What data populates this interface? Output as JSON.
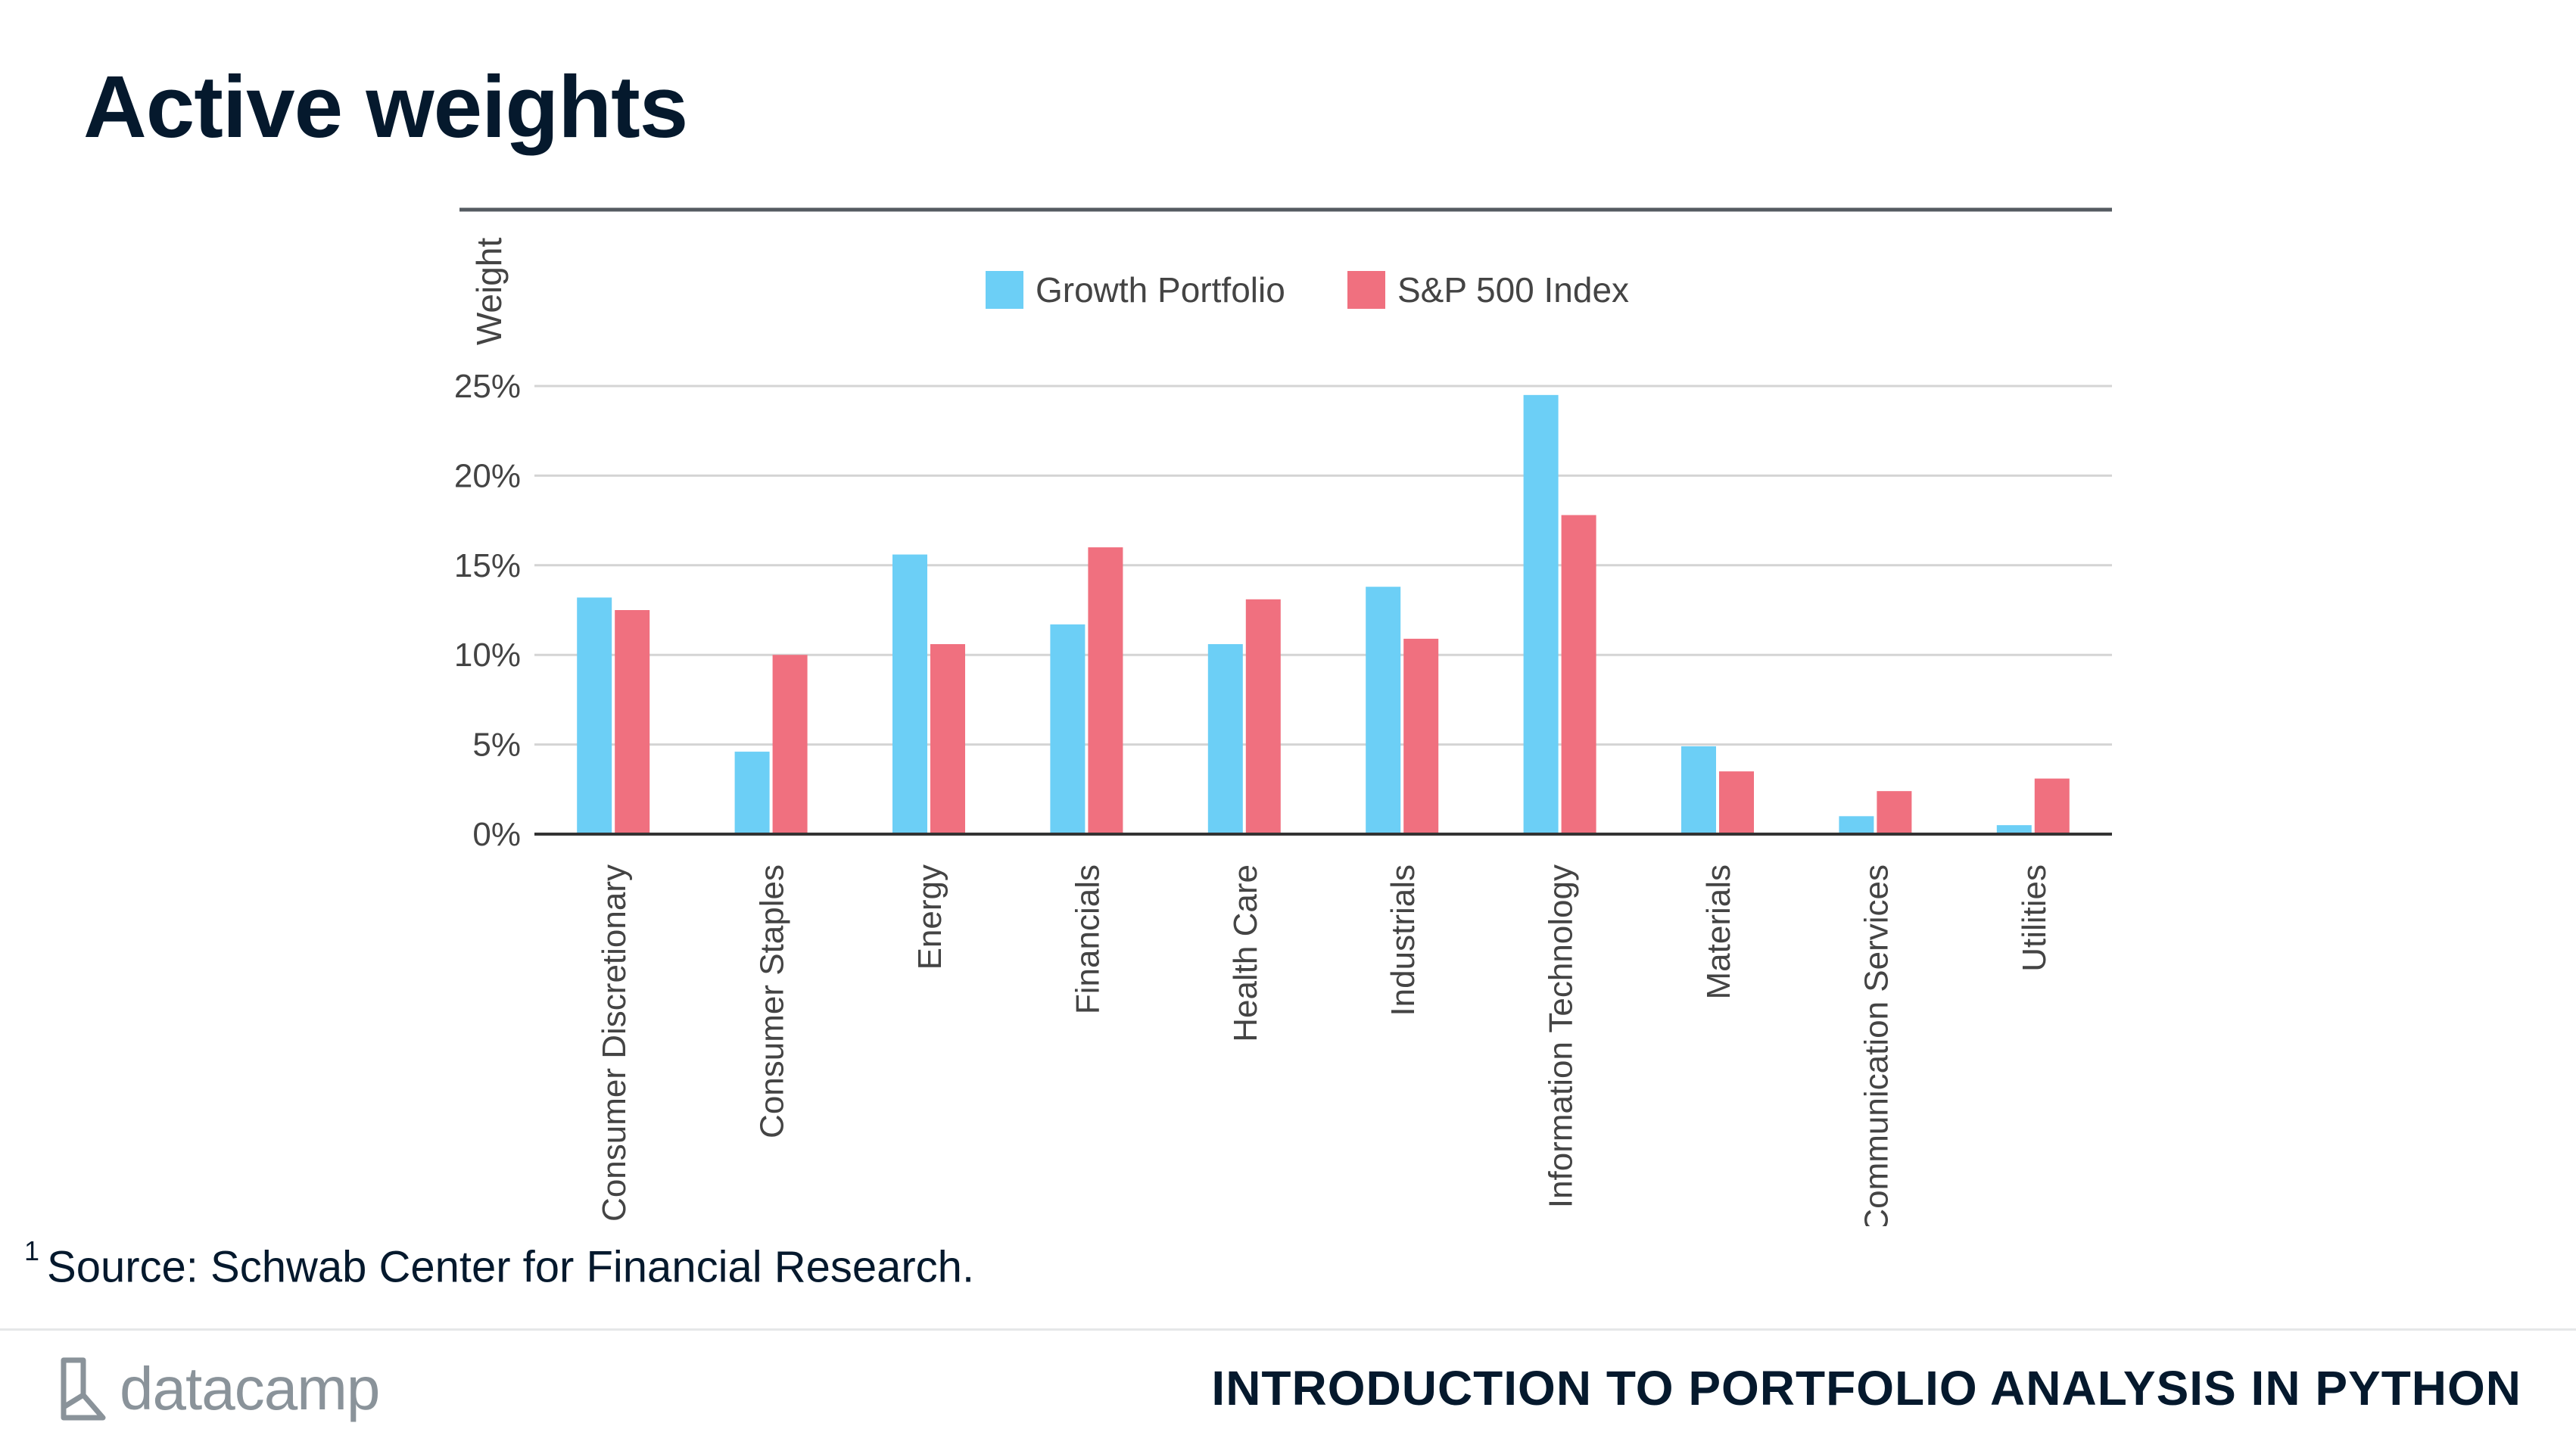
{
  "slide": {
    "title": "Active weights",
    "footnote_number": "1",
    "footnote_text": "Source: Schwab Center for Financial Research.",
    "brand_name": "datacamp",
    "brand_icon": "datacamp-logo-icon",
    "course_title": "INTRODUCTION TO PORTFOLIO ANALYSIS IN PYTHON"
  },
  "chart_data": {
    "type": "bar",
    "title": "",
    "ylabel": "Weight",
    "xlabel": "",
    "ylim": [
      0,
      25
    ],
    "yticks": [
      0,
      5,
      10,
      15,
      20,
      25
    ],
    "ytick_labels": [
      "0%",
      "5%",
      "10%",
      "15%",
      "20%",
      "25%"
    ],
    "grid": true,
    "legend_position": "top-center",
    "categories": [
      "Consumer Discretionary",
      "Consumer Staples",
      "Energy",
      "Financials",
      "Health Care",
      "Industrials",
      "Information Technology",
      "Materials",
      "Communication Services",
      "Utilities"
    ],
    "series": [
      {
        "name": "Growth Portfolio",
        "color": "#6ccff6",
        "values": [
          13.2,
          4.6,
          15.6,
          11.7,
          10.6,
          13.8,
          24.5,
          4.9,
          1.0,
          0.5
        ]
      },
      {
        "name": "S&P 500 Index",
        "color": "#f0707f",
        "values": [
          12.5,
          10.0,
          10.6,
          16.0,
          13.1,
          10.9,
          17.8,
          3.5,
          2.4,
          3.1
        ]
      }
    ]
  }
}
